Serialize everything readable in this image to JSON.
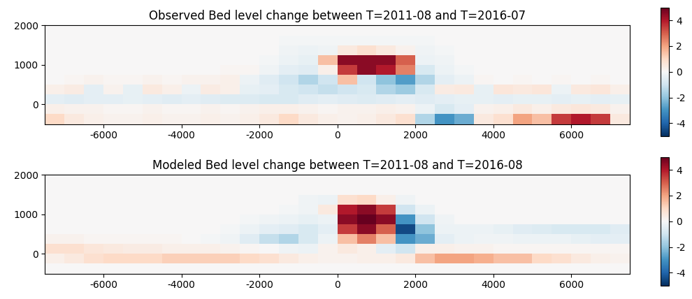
{
  "chart_data": [
    {
      "type": "heatmap",
      "title": "Observed Bed level change between T=2011-08 and T=2016-07",
      "x_edges": [
        -7500,
        -7000,
        -6500,
        -6000,
        -5500,
        -5000,
        -4500,
        -4000,
        -3500,
        -3000,
        -2500,
        -2000,
        -1500,
        -1000,
        -500,
        0,
        500,
        1000,
        1500,
        2000,
        2500,
        3000,
        3500,
        4000,
        4500,
        5000,
        5500,
        6000,
        6500,
        7000,
        7500
      ],
      "y_edges": [
        -500,
        -250,
        0,
        250,
        500,
        750,
        1000,
        1250,
        1500,
        1750,
        2000
      ],
      "cells": [
        [
          1.0,
          0.5,
          0.3,
          0.2,
          0.2,
          0.3,
          0.2,
          0.2,
          0.3,
          0.2,
          0.3,
          0.5,
          1.0,
          0.5,
          0.3,
          0.2,
          0.3,
          0.5,
          0.8,
          -1.5,
          -3.0,
          -2.5,
          0.5,
          0.8,
          2.0,
          1.5,
          3.5,
          4.0,
          3.5,
          0.5
        ],
        [
          0.3,
          0.2,
          0.2,
          0.1,
          0.1,
          0.2,
          0.1,
          0.1,
          0.2,
          0.1,
          0.2,
          0.3,
          0.3,
          0.2,
          0.1,
          0.2,
          0.2,
          0.3,
          0.2,
          -0.3,
          -0.8,
          -0.5,
          0.2,
          0.3,
          0.5,
          0.3,
          0.5,
          0.6,
          0.5,
          0.2
        ],
        [
          -0.5,
          -0.6,
          -0.5,
          -0.5,
          -0.4,
          -0.5,
          -0.6,
          -0.5,
          -0.6,
          -0.7,
          -0.7,
          -0.8,
          -0.8,
          -0.6,
          -0.5,
          -0.6,
          -0.7,
          -0.6,
          -0.5,
          -0.6,
          -0.5,
          -0.4,
          -0.4,
          -0.5,
          -0.4,
          -0.4,
          -0.5,
          -0.4,
          -0.5,
          -0.4
        ],
        [
          0.3,
          0.4,
          -0.5,
          0.2,
          -0.4,
          0.5,
          0.3,
          -0.3,
          0.4,
          0.3,
          -0.4,
          -0.5,
          -0.8,
          -1.0,
          -1.2,
          -1.0,
          -0.8,
          -1.5,
          -1.8,
          -0.8,
          0.4,
          0.5,
          -0.4,
          0.6,
          0.5,
          0.6,
          -0.3,
          0.5,
          0.6,
          0.3
        ],
        [
          0.0,
          0.1,
          0.2,
          0.1,
          0.1,
          0.2,
          0.1,
          0.2,
          0.2,
          0.3,
          -0.3,
          -0.6,
          -1.0,
          -1.5,
          -1.0,
          1.5,
          -1.0,
          -2.0,
          -2.8,
          -1.5,
          -0.5,
          -0.3,
          0.1,
          0.0,
          0.1,
          0.0,
          0.1,
          0.0,
          0.1,
          0.0
        ],
        [
          0.0,
          0.0,
          0.0,
          0.0,
          0.0,
          0.0,
          0.0,
          0.0,
          0.0,
          0.1,
          0.1,
          -0.2,
          -0.5,
          -0.6,
          0.3,
          3.5,
          4.5,
          4.0,
          2.5,
          -0.8,
          -0.3,
          -0.1,
          0.0,
          0.0,
          0.0,
          0.0,
          0.0,
          0.0,
          0.0,
          0.0
        ],
        [
          0.0,
          0.0,
          0.0,
          0.0,
          0.0,
          0.0,
          0.0,
          0.0,
          0.0,
          0.0,
          0.0,
          -0.1,
          -0.3,
          -0.4,
          1.5,
          4.5,
          4.5,
          4.5,
          3.0,
          -0.3,
          -0.2,
          0.0,
          0.0,
          0.0,
          0.0,
          0.0,
          0.0,
          0.0,
          0.0,
          0.0
        ],
        [
          0.0,
          0.0,
          0.0,
          0.0,
          0.0,
          0.0,
          0.0,
          0.0,
          0.0,
          0.0,
          0.0,
          0.0,
          -0.2,
          -0.3,
          -0.2,
          0.5,
          0.8,
          0.5,
          0.2,
          -0.2,
          -0.1,
          0.0,
          0.0,
          0.0,
          0.0,
          0.0,
          0.0,
          0.0,
          0.0,
          0.0
        ],
        [
          0.0,
          0.0,
          0.0,
          0.0,
          0.0,
          0.0,
          0.0,
          0.0,
          0.0,
          0.0,
          0.0,
          0.0,
          -0.1,
          -0.1,
          -0.1,
          -0.1,
          -0.1,
          -0.1,
          -0.1,
          -0.1,
          0.0,
          0.0,
          0.0,
          0.0,
          0.0,
          0.0,
          0.0,
          0.0,
          0.0,
          0.0
        ],
        [
          0.0,
          0.0,
          0.0,
          0.0,
          0.0,
          0.0,
          0.0,
          0.0,
          0.0,
          0.0,
          0.0,
          0.0,
          0.0,
          0.0,
          0.0,
          0.0,
          0.0,
          0.0,
          0.0,
          0.0,
          0.0,
          0.0,
          0.0,
          0.0,
          0.0,
          0.0,
          0.0,
          0.0,
          0.0,
          0.0
        ]
      ],
      "xlim": [
        -7500,
        7500
      ],
      "ylim": [
        -500,
        2000
      ],
      "xticks": [
        -6000,
        -4000,
        -2000,
        0,
        2000,
        4000,
        6000
      ],
      "yticks": [
        0,
        1000,
        2000
      ],
      "colorbar_range": [
        -5,
        5
      ],
      "colorbar_ticks": [
        -4,
        -2,
        0,
        2,
        4
      ]
    },
    {
      "type": "heatmap",
      "title": "Modeled Bed level change between T=2011-08 and T=2016-08",
      "x_edges": [
        -7500,
        -7000,
        -6500,
        -6000,
        -5500,
        -5000,
        -4500,
        -4000,
        -3500,
        -3000,
        -2500,
        -2000,
        -1500,
        -1000,
        -500,
        0,
        500,
        1000,
        1500,
        2000,
        2500,
        3000,
        3500,
        4000,
        4500,
        5000,
        5500,
        6000,
        6500,
        7000,
        7500
      ],
      "y_edges": [
        -500,
        -250,
        0,
        250,
        500,
        750,
        1000,
        1250,
        1500,
        1750,
        2000
      ],
      "cells": [
        [
          0.0,
          0.0,
          0.0,
          0.0,
          0.0,
          0.0,
          0.0,
          0.0,
          0.0,
          0.0,
          0.0,
          0.0,
          0.0,
          0.0,
          0.0,
          0.0,
          0.0,
          0.0,
          0.0,
          0.0,
          0.0,
          0.0,
          0.0,
          0.0,
          0.0,
          0.0,
          0.0,
          0.0,
          0.0,
          0.0
        ],
        [
          0.3,
          0.5,
          0.8,
          1.0,
          1.0,
          1.0,
          1.2,
          1.2,
          1.2,
          1.2,
          1.0,
          0.8,
          0.5,
          0.3,
          0.2,
          0.2,
          0.3,
          0.3,
          0.5,
          1.5,
          2.0,
          2.0,
          1.8,
          1.5,
          1.5,
          1.0,
          0.8,
          0.5,
          0.3,
          0.2
        ],
        [
          0.8,
          0.8,
          0.6,
          0.5,
          0.4,
          0.4,
          0.3,
          0.3,
          0.3,
          0.2,
          0.1,
          0.0,
          -0.2,
          -0.3,
          0.2,
          0.5,
          0.3,
          -0.5,
          -1.0,
          0.3,
          0.3,
          0.2,
          0.2,
          0.1,
          0.1,
          0.1,
          0.1,
          0.1,
          0.1,
          0.1
        ],
        [
          0.2,
          0.2,
          0.1,
          0.1,
          0.1,
          0.1,
          0.1,
          0.0,
          -0.1,
          -0.2,
          -0.6,
          -1.2,
          -1.5,
          -0.8,
          -0.3,
          1.5,
          2.5,
          1.5,
          -3.0,
          -2.5,
          -0.5,
          -0.3,
          -0.2,
          -0.2,
          -0.3,
          -0.3,
          -0.3,
          -0.4,
          -0.5,
          -0.5
        ],
        [
          0.0,
          0.0,
          0.0,
          0.0,
          0.0,
          0.0,
          0.0,
          0.0,
          0.0,
          -0.1,
          -0.3,
          -0.5,
          -0.6,
          -0.8,
          -0.5,
          3.5,
          4.5,
          3.0,
          -4.5,
          -2.0,
          -0.3,
          -0.3,
          -0.3,
          -0.4,
          -0.6,
          -0.7,
          -0.8,
          -0.8,
          -0.8,
          -0.6
        ],
        [
          0.0,
          0.0,
          0.0,
          0.0,
          0.0,
          0.0,
          0.0,
          0.0,
          0.0,
          0.0,
          -0.1,
          -0.2,
          -0.3,
          -0.4,
          -0.3,
          4.5,
          5.0,
          4.5,
          -3.0,
          -1.0,
          -0.2,
          0.0,
          0.0,
          0.0,
          0.0,
          0.0,
          0.0,
          0.0,
          0.0,
          0.0
        ],
        [
          0.0,
          0.0,
          0.0,
          0.0,
          0.0,
          0.0,
          0.0,
          0.0,
          0.0,
          0.0,
          0.0,
          0.0,
          -0.1,
          -0.2,
          0.5,
          4.0,
          4.5,
          3.5,
          -1.0,
          -0.3,
          0.0,
          0.0,
          0.0,
          0.0,
          0.0,
          0.0,
          0.0,
          0.0,
          0.0,
          0.0
        ],
        [
          0.0,
          0.0,
          0.0,
          0.0,
          0.0,
          0.0,
          0.0,
          0.0,
          0.0,
          0.0,
          0.0,
          0.0,
          0.0,
          -0.2,
          -0.3,
          0.8,
          1.0,
          0.3,
          -0.2,
          0.0,
          0.0,
          0.0,
          0.0,
          0.0,
          0.0,
          0.0,
          0.0,
          0.0,
          0.0,
          0.0
        ],
        [
          0.0,
          0.0,
          0.0,
          0.0,
          0.0,
          0.0,
          0.0,
          0.0,
          0.0,
          0.0,
          0.0,
          0.0,
          0.0,
          0.0,
          0.0,
          0.0,
          0.0,
          0.0,
          0.0,
          0.0,
          0.0,
          0.0,
          0.0,
          0.0,
          0.0,
          0.0,
          0.0,
          0.0,
          0.0,
          0.0
        ],
        [
          0.0,
          0.0,
          0.0,
          0.0,
          0.0,
          0.0,
          0.0,
          0.0,
          0.0,
          0.0,
          0.0,
          0.0,
          0.0,
          0.0,
          0.0,
          0.0,
          0.0,
          0.0,
          0.0,
          0.0,
          0.0,
          0.0,
          0.0,
          0.0,
          0.0,
          0.0,
          0.0,
          0.0,
          0.0,
          0.0
        ]
      ],
      "xlim": [
        -7500,
        7500
      ],
      "ylim": [
        -500,
        2000
      ],
      "xticks": [
        -6000,
        -4000,
        -2000,
        0,
        2000,
        4000,
        6000
      ],
      "yticks": [
        0,
        1000,
        2000
      ],
      "colorbar_range": [
        -5,
        5
      ],
      "colorbar_ticks": [
        -4,
        -2,
        0,
        2,
        4
      ]
    }
  ]
}
